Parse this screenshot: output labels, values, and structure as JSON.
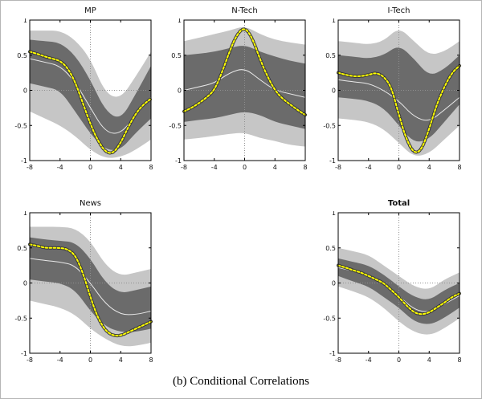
{
  "caption": "(b) Conditional Correlations",
  "colors": {
    "outer_band": "#c6c6c6",
    "inner_band": "#6b6b6b",
    "median_line": "#e9e9e9",
    "irf_line": "#ffff00",
    "irf_outline": "#3a3a3a",
    "zero_line": "#909090",
    "axis": "#000000"
  },
  "chart_data": [
    {
      "type": "area",
      "title": "MP",
      "title_bold": false,
      "xlabel": "",
      "ylabel": "",
      "xlim": [
        -8,
        8
      ],
      "ylim": [
        -1,
        1
      ],
      "xticks": [
        -8,
        -4,
        0,
        4,
        8
      ],
      "yticks": [
        -1,
        -0.5,
        0,
        0.5,
        1
      ],
      "x_band": [
        -8,
        -6,
        -4,
        -2,
        0,
        2,
        4,
        6,
        8
      ],
      "outer_upper": [
        0.85,
        0.85,
        0.85,
        0.72,
        0.45,
        -0.05,
        -0.12,
        0.2,
        0.55
      ],
      "inner_upper": [
        0.72,
        0.7,
        0.68,
        0.5,
        0.15,
        -0.3,
        -0.42,
        -0.05,
        0.35
      ],
      "inner_lower": [
        0.1,
        0.05,
        0.0,
        -0.3,
        -0.62,
        -0.85,
        -0.85,
        -0.6,
        -0.4
      ],
      "outer_lower": [
        -0.3,
        -0.4,
        -0.5,
        -0.65,
        -0.85,
        -0.97,
        -0.95,
        -0.85,
        -0.7
      ],
      "median": [
        0.45,
        0.4,
        0.35,
        0.12,
        -0.25,
        -0.6,
        -0.62,
        -0.35,
        -0.1
      ],
      "x_line": [
        -8,
        -7,
        -6,
        -5,
        -4,
        -3,
        -2,
        -1,
        0,
        1,
        2,
        3,
        4,
        5,
        6,
        7,
        8
      ],
      "line": [
        0.55,
        0.52,
        0.48,
        0.45,
        0.42,
        0.32,
        0.12,
        -0.18,
        -0.48,
        -0.72,
        -0.88,
        -0.9,
        -0.75,
        -0.52,
        -0.33,
        -0.2,
        -0.12
      ]
    },
    {
      "type": "area",
      "title": "N-Tech",
      "title_bold": false,
      "xlabel": "",
      "ylabel": "",
      "xlim": [
        -8,
        8
      ],
      "ylim": [
        -1,
        1
      ],
      "xticks": [
        -8,
        -4,
        0,
        4,
        8
      ],
      "yticks": [
        -1,
        -0.5,
        0,
        0.5,
        1
      ],
      "x_band": [
        -8,
        -6,
        -4,
        -2,
        0,
        2,
        4,
        6,
        8
      ],
      "outer_upper": [
        0.7,
        0.75,
        0.8,
        0.85,
        0.92,
        0.8,
        0.72,
        0.68,
        0.65
      ],
      "inner_upper": [
        0.5,
        0.52,
        0.55,
        0.6,
        0.65,
        0.55,
        0.48,
        0.42,
        0.38
      ],
      "inner_lower": [
        -0.45,
        -0.42,
        -0.4,
        -0.35,
        -0.3,
        -0.35,
        -0.45,
        -0.5,
        -0.55
      ],
      "outer_lower": [
        -0.7,
        -0.68,
        -0.65,
        -0.62,
        -0.6,
        -0.68,
        -0.72,
        -0.78,
        -0.8
      ],
      "median": [
        0.0,
        0.05,
        0.1,
        0.25,
        0.32,
        0.15,
        0.0,
        -0.05,
        -0.1
      ],
      "x_line": [
        -8,
        -7,
        -6,
        -5,
        -4,
        -3,
        -2,
        -1,
        0,
        1,
        2,
        3,
        4,
        5,
        6,
        7,
        8
      ],
      "line": [
        -0.3,
        -0.25,
        -0.18,
        -0.1,
        0.0,
        0.25,
        0.55,
        0.8,
        0.9,
        0.75,
        0.45,
        0.2,
        0.0,
        -0.12,
        -0.2,
        -0.28,
        -0.35
      ]
    },
    {
      "type": "area",
      "title": "I-Tech",
      "title_bold": false,
      "xlabel": "",
      "ylabel": "",
      "xlim": [
        -8,
        8
      ],
      "ylim": [
        -1,
        1
      ],
      "xticks": [
        -8,
        -4,
        0,
        4,
        8
      ],
      "yticks": [
        -1,
        -0.5,
        0,
        0.5,
        1
      ],
      "x_band": [
        -8,
        -6,
        -4,
        -2,
        0,
        2,
        4,
        6,
        8
      ],
      "outer_upper": [
        0.7,
        0.68,
        0.65,
        0.7,
        0.9,
        0.7,
        0.5,
        0.55,
        0.7
      ],
      "inner_upper": [
        0.5,
        0.48,
        0.45,
        0.5,
        0.65,
        0.45,
        0.2,
        0.3,
        0.5
      ],
      "inner_lower": [
        -0.1,
        -0.12,
        -0.15,
        -0.25,
        -0.5,
        -0.75,
        -0.7,
        -0.45,
        -0.2
      ],
      "outer_lower": [
        -0.4,
        -0.42,
        -0.45,
        -0.55,
        -0.75,
        -0.95,
        -0.9,
        -0.7,
        -0.5
      ],
      "median": [
        0.15,
        0.12,
        0.1,
        0.0,
        -0.15,
        -0.38,
        -0.45,
        -0.28,
        -0.1
      ],
      "x_line": [
        -8,
        -7,
        -6,
        -5,
        -4,
        -3,
        -2,
        -1,
        0,
        1,
        2,
        3,
        4,
        5,
        6,
        7,
        8
      ],
      "line": [
        0.25,
        0.22,
        0.2,
        0.2,
        0.22,
        0.25,
        0.2,
        0.05,
        -0.35,
        -0.7,
        -0.9,
        -0.85,
        -0.55,
        -0.2,
        0.05,
        0.25,
        0.35
      ]
    },
    {
      "type": "area",
      "title": "News",
      "title_bold": false,
      "xlabel": "",
      "ylabel": "",
      "xlim": [
        -8,
        8
      ],
      "ylim": [
        -1,
        1
      ],
      "xticks": [
        -8,
        -4,
        0,
        4,
        8
      ],
      "yticks": [
        -1,
        -0.5,
        0,
        0.5,
        1
      ],
      "x_band": [
        -8,
        -6,
        -4,
        -2,
        0,
        2,
        4,
        6,
        8
      ],
      "outer_upper": [
        0.8,
        0.8,
        0.8,
        0.78,
        0.6,
        0.25,
        0.1,
        0.15,
        0.2
      ],
      "inner_upper": [
        0.65,
        0.62,
        0.6,
        0.58,
        0.35,
        0.0,
        -0.15,
        -0.1,
        -0.05
      ],
      "inner_lower": [
        0.05,
        0.02,
        0.0,
        -0.1,
        -0.4,
        -0.62,
        -0.7,
        -0.7,
        -0.65
      ],
      "outer_lower": [
        -0.25,
        -0.3,
        -0.35,
        -0.45,
        -0.65,
        -0.8,
        -0.9,
        -0.9,
        -0.85
      ],
      "median": [
        0.35,
        0.32,
        0.3,
        0.25,
        0.0,
        -0.3,
        -0.45,
        -0.45,
        -0.4
      ],
      "x_line": [
        -8,
        -7,
        -6,
        -5,
        -4,
        -3,
        -2,
        -1,
        0,
        1,
        2,
        3,
        4,
        5,
        6,
        7,
        8
      ],
      "line": [
        0.55,
        0.53,
        0.5,
        0.5,
        0.5,
        0.48,
        0.4,
        0.15,
        -0.2,
        -0.5,
        -0.68,
        -0.75,
        -0.75,
        -0.7,
        -0.65,
        -0.6,
        -0.55
      ]
    },
    {
      "type": "area",
      "title": "Total",
      "title_bold": true,
      "xlabel": "",
      "ylabel": "",
      "xlim": [
        -8,
        8
      ],
      "ylim": [
        -1,
        1
      ],
      "xticks": [
        -8,
        -4,
        0,
        4,
        8
      ],
      "yticks": [
        -1,
        -0.5,
        0,
        0.5,
        1
      ],
      "x_band": [
        -8,
        -6,
        -4,
        -2,
        0,
        2,
        4,
        6,
        8
      ],
      "outer_upper": [
        0.5,
        0.45,
        0.4,
        0.25,
        0.1,
        -0.05,
        -0.1,
        0.05,
        0.15
      ],
      "inner_upper": [
        0.35,
        0.3,
        0.25,
        0.12,
        -0.05,
        -0.2,
        -0.25,
        -0.1,
        0.0
      ],
      "inner_lower": [
        0.1,
        0.02,
        -0.05,
        -0.2,
        -0.35,
        -0.55,
        -0.6,
        -0.5,
        -0.35
      ],
      "outer_lower": [
        -0.05,
        -0.12,
        -0.2,
        -0.35,
        -0.55,
        -0.7,
        -0.75,
        -0.65,
        -0.5
      ],
      "median": [
        0.22,
        0.17,
        0.12,
        -0.02,
        -0.18,
        -0.38,
        -0.42,
        -0.3,
        -0.18
      ],
      "x_line": [
        -8,
        -7,
        -6,
        -5,
        -4,
        -3,
        -2,
        -1,
        0,
        1,
        2,
        3,
        4,
        5,
        6,
        7,
        8
      ],
      "line": [
        0.25,
        0.22,
        0.18,
        0.15,
        0.1,
        0.05,
        0.0,
        -0.1,
        -0.2,
        -0.32,
        -0.42,
        -0.45,
        -0.42,
        -0.35,
        -0.28,
        -0.2,
        -0.15
      ]
    }
  ]
}
